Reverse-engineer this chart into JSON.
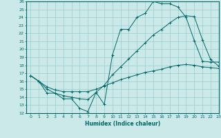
{
  "xlabel": "Humidex (Indice chaleur)",
  "bg_color": "#cce9e9",
  "line_color": "#006666",
  "grid_color": "#99cccc",
  "ylim": [
    12,
    26
  ],
  "xlim": [
    -0.5,
    23
  ],
  "yticks": [
    12,
    13,
    14,
    15,
    16,
    17,
    18,
    19,
    20,
    21,
    22,
    23,
    24,
    25,
    26
  ],
  "xticks": [
    0,
    1,
    2,
    3,
    4,
    5,
    6,
    7,
    8,
    9,
    10,
    11,
    12,
    13,
    14,
    15,
    16,
    17,
    18,
    19,
    20,
    21,
    22,
    23
  ],
  "line1_x": [
    0,
    1,
    2,
    3,
    4,
    5,
    6,
    7,
    8,
    9,
    10,
    11,
    12,
    13,
    14,
    15,
    16,
    17,
    18,
    19,
    20,
    21,
    22,
    23
  ],
  "line1_y": [
    16.7,
    16.0,
    14.5,
    14.5,
    13.8,
    13.8,
    12.6,
    12.2,
    14.6,
    13.1,
    19.3,
    22.5,
    22.5,
    24.0,
    24.5,
    26.0,
    25.7,
    25.7,
    25.3,
    24.0,
    21.1,
    18.5,
    18.4,
    18.4
  ],
  "line2_x": [
    0,
    1,
    2,
    3,
    4,
    5,
    6,
    7,
    8,
    9,
    10,
    11,
    12,
    13,
    14,
    15,
    16,
    17,
    18,
    19,
    20,
    21,
    22,
    23
  ],
  "line2_y": [
    16.7,
    16.0,
    15.0,
    14.5,
    14.2,
    14.0,
    13.8,
    13.7,
    14.6,
    15.5,
    16.8,
    17.8,
    18.8,
    19.8,
    20.8,
    21.8,
    22.5,
    23.3,
    24.0,
    24.2,
    24.1,
    21.2,
    18.7,
    17.9
  ],
  "line3_x": [
    0,
    1,
    2,
    3,
    4,
    5,
    6,
    7,
    8,
    9,
    10,
    11,
    12,
    13,
    14,
    15,
    16,
    17,
    18,
    19,
    20,
    21,
    22,
    23
  ],
  "line3_y": [
    16.7,
    16.0,
    15.3,
    14.9,
    14.7,
    14.7,
    14.7,
    14.7,
    15.0,
    15.4,
    15.8,
    16.2,
    16.5,
    16.8,
    17.1,
    17.3,
    17.5,
    17.8,
    18.0,
    18.1,
    18.0,
    17.8,
    17.7,
    17.6
  ]
}
